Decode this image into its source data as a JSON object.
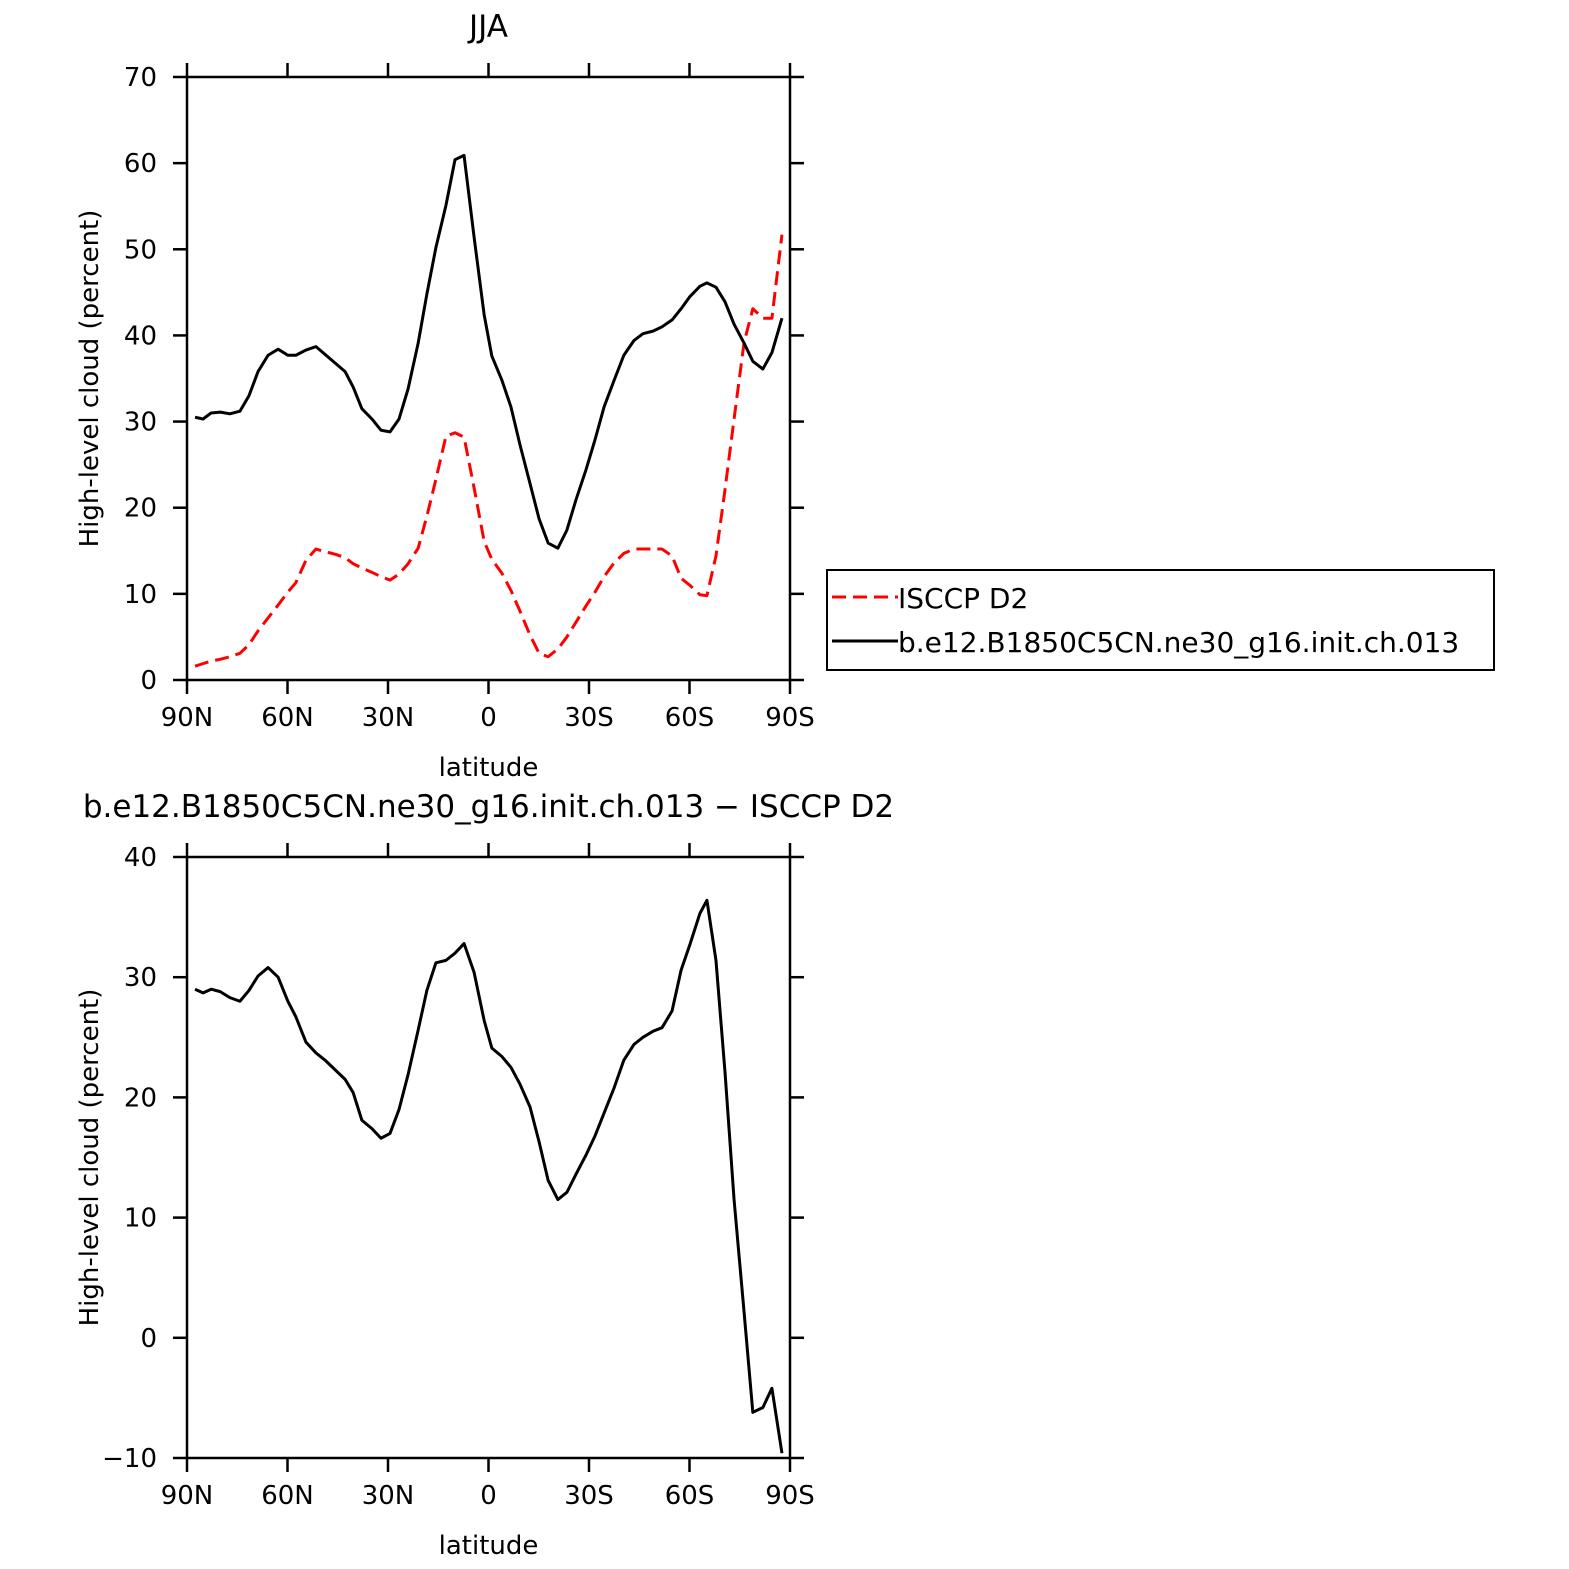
{
  "chart_data": [
    {
      "type": "line",
      "title": "JJA",
      "xlabel": "latitude",
      "ylabel": "High-level cloud (percent)",
      "x": [
        87.6,
        85.2,
        82.8,
        80.1,
        77.2,
        74.2,
        71.5,
        68.8,
        65.8,
        62.8,
        59.9,
        57.5,
        54.5,
        51.5,
        48.8,
        45.8,
        42.8,
        40.4,
        37.8,
        34.8,
        32.1,
        29.4,
        26.7,
        24.0,
        21.0,
        18.4,
        15.7,
        12.7,
        10.0,
        7.3,
        4.3,
        1.3,
        -1.0,
        -4.0,
        -6.7,
        -9.4,
        -12.4,
        -15.1,
        -17.8,
        -20.7,
        -23.4,
        -26.1,
        -29.1,
        -31.8,
        -34.5,
        -37.5,
        -40.4,
        -43.4,
        -46.1,
        -49.1,
        -51.8,
        -54.8,
        -57.5,
        -60.1,
        -63.1,
        -65.2,
        -67.9,
        -70.6,
        -73.3,
        -76.3,
        -78.9,
        -81.9,
        -84.6,
        -87.6
      ],
      "series": [
        {
          "name": "ISCCP D2",
          "color": "#ff0000",
          "dashed": true,
          "values": [
            1.6,
            1.9,
            2.2,
            2.4,
            2.7,
            3.1,
            4.1,
            5.7,
            7.2,
            8.7,
            10.2,
            11.3,
            13.9,
            15.2,
            14.9,
            14.6,
            14.2,
            13.5,
            13.0,
            12.5,
            12.0,
            11.6,
            12.3,
            13.5,
            15.3,
            19.0,
            23.3,
            28.3,
            28.7,
            28.2,
            22.3,
            16.1,
            14.0,
            12.4,
            10.4,
            8.0,
            5.2,
            3.1,
            2.7,
            3.6,
            5.0,
            6.7,
            8.6,
            10.2,
            12.0,
            13.6,
            14.7,
            15.2,
            15.2,
            15.2,
            15.2,
            14.4,
            11.8,
            11.0,
            9.9,
            9.8,
            14.4,
            22.1,
            30.3,
            39.2,
            43.1,
            42.0,
            42.0,
            51.7
          ]
        },
        {
          "name": "b.e12.B1850C5CN.ne30_g16.init.ch.013",
          "color": "#000000",
          "dashed": false,
          "values": [
            30.5,
            30.3,
            31.0,
            31.1,
            30.9,
            31.2,
            33.0,
            35.8,
            37.7,
            38.4,
            37.7,
            37.7,
            38.3,
            38.7,
            37.8,
            36.8,
            35.8,
            34.0,
            31.5,
            30.3,
            29.0,
            28.8,
            30.3,
            33.8,
            39.1,
            44.8,
            50.2,
            55.1,
            60.4,
            60.9,
            51.4,
            42.4,
            37.6,
            34.8,
            31.7,
            27.3,
            22.8,
            18.7,
            15.9,
            15.3,
            17.4,
            20.9,
            24.4,
            27.9,
            31.7,
            34.8,
            37.7,
            39.4,
            40.2,
            40.5,
            41.0,
            41.8,
            43.1,
            44.5,
            45.7,
            46.1,
            45.6,
            43.9,
            41.3,
            39.1,
            37.0,
            36.1,
            38.0,
            42.0
          ]
        }
      ],
      "xlim": [
        90,
        -90
      ],
      "xticks": [
        {
          "value": 90,
          "label": "90N"
        },
        {
          "value": 60,
          "label": "60N"
        },
        {
          "value": 30,
          "label": "30N"
        },
        0,
        {
          "value": -30,
          "label": "30S"
        },
        {
          "value": -60,
          "label": "60S"
        },
        {
          "value": -90,
          "label": "90S"
        }
      ],
      "ylim": [
        0,
        70
      ],
      "yticks": [
        0,
        10,
        20,
        30,
        40,
        50,
        60,
        70
      ],
      "legend": "outside-right",
      "grid": false
    },
    {
      "type": "line",
      "title": "b.e12.B1850C5CN.ne30_g16.init.ch.013 − ISCCP D2",
      "xlabel": "latitude",
      "ylabel": "High-level cloud (percent)",
      "x": [
        87.6,
        85.2,
        82.8,
        80.1,
        77.2,
        74.2,
        71.5,
        68.8,
        65.8,
        62.8,
        59.9,
        57.5,
        54.5,
        51.5,
        48.8,
        45.8,
        42.8,
        40.4,
        37.8,
        34.8,
        32.1,
        29.4,
        26.7,
        24.0,
        21.0,
        18.4,
        15.7,
        12.7,
        10.0,
        7.3,
        4.3,
        1.3,
        -1.0,
        -4.0,
        -6.7,
        -9.4,
        -12.4,
        -15.1,
        -17.8,
        -20.7,
        -23.4,
        -26.1,
        -29.1,
        -31.8,
        -34.5,
        -37.5,
        -40.4,
        -43.4,
        -46.1,
        -49.1,
        -51.8,
        -54.8,
        -57.5,
        -60.1,
        -63.1,
        -65.2,
        -67.9,
        -70.6,
        -73.3,
        -76.3,
        -78.9,
        -81.9,
        -84.6,
        -87.6
      ],
      "series": [
        {
          "color": "#000000",
          "dashed": false,
          "values": [
            29.0,
            28.7,
            29.0,
            28.8,
            28.3,
            28.0,
            28.9,
            30.1,
            30.8,
            30.0,
            28.0,
            26.7,
            24.6,
            23.7,
            23.1,
            22.3,
            21.5,
            20.4,
            18.1,
            17.4,
            16.6,
            17.0,
            19.0,
            21.9,
            25.6,
            28.9,
            31.2,
            31.4,
            32.0,
            32.8,
            30.4,
            26.4,
            24.1,
            23.4,
            22.5,
            21.1,
            19.2,
            16.3,
            13.1,
            11.5,
            12.1,
            13.6,
            15.2,
            16.8,
            18.7,
            20.8,
            23.1,
            24.4,
            25.0,
            25.5,
            25.8,
            27.2,
            30.6,
            32.7,
            35.3,
            36.4,
            31.4,
            22.1,
            11.5,
            2.1,
            -6.2,
            -5.8,
            -4.2,
            -9.6
          ]
        }
      ],
      "xlim": [
        90,
        -90
      ],
      "xticks": [
        {
          "value": 90,
          "label": "90N"
        },
        {
          "value": 60,
          "label": "60N"
        },
        {
          "value": 30,
          "label": "30N"
        },
        0,
        {
          "value": -30,
          "label": "30S"
        },
        {
          "value": -60,
          "label": "60S"
        },
        {
          "value": -90,
          "label": "90S"
        }
      ],
      "ylim": [
        -10,
        40
      ],
      "yticks": [
        {
          "value": -10,
          "label": "−10"
        },
        0,
        10,
        20,
        30,
        40
      ],
      "grid": false
    }
  ]
}
